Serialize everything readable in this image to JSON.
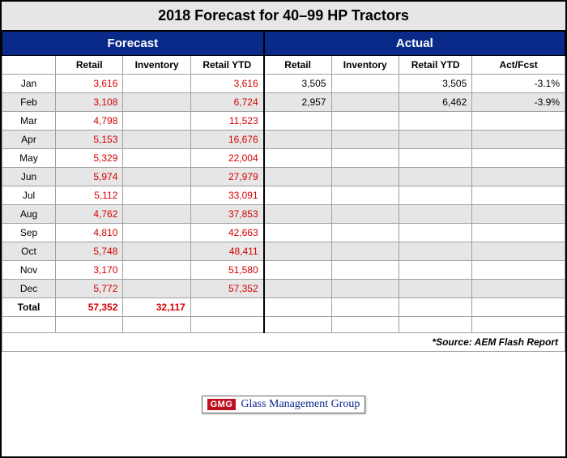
{
  "title": "2018 Forecast for 40–99 HP Tractors",
  "section_headers": {
    "forecast": "Forecast",
    "actual": "Actual"
  },
  "columns": {
    "month": "",
    "f_retail": "Retail",
    "f_inventory": "Inventory",
    "f_ytd": "Retail YTD",
    "a_retail": "Retail",
    "a_inventory": "Inventory",
    "a_ytd": "Retail YTD",
    "act_fcst": "Act/Fcst"
  },
  "rows": [
    {
      "month": "Jan",
      "f_retail": "3,616",
      "f_inventory": "",
      "f_ytd": "3,616",
      "a_retail": "3,505",
      "a_inventory": "",
      "a_ytd": "3,505",
      "act_fcst": "-3.1%"
    },
    {
      "month": "Feb",
      "f_retail": "3,108",
      "f_inventory": "",
      "f_ytd": "6,724",
      "a_retail": "2,957",
      "a_inventory": "",
      "a_ytd": "6,462",
      "act_fcst": "-3.9%"
    },
    {
      "month": "Mar",
      "f_retail": "4,798",
      "f_inventory": "",
      "f_ytd": "11,523",
      "a_retail": "",
      "a_inventory": "",
      "a_ytd": "",
      "act_fcst": ""
    },
    {
      "month": "Apr",
      "f_retail": "5,153",
      "f_inventory": "",
      "f_ytd": "16,676",
      "a_retail": "",
      "a_inventory": "",
      "a_ytd": "",
      "act_fcst": ""
    },
    {
      "month": "May",
      "f_retail": "5,329",
      "f_inventory": "",
      "f_ytd": "22,004",
      "a_retail": "",
      "a_inventory": "",
      "a_ytd": "",
      "act_fcst": ""
    },
    {
      "month": "Jun",
      "f_retail": "5,974",
      "f_inventory": "",
      "f_ytd": "27,979",
      "a_retail": "",
      "a_inventory": "",
      "a_ytd": "",
      "act_fcst": ""
    },
    {
      "month": "Jul",
      "f_retail": "5,112",
      "f_inventory": "",
      "f_ytd": "33,091",
      "a_retail": "",
      "a_inventory": "",
      "a_ytd": "",
      "act_fcst": ""
    },
    {
      "month": "Aug",
      "f_retail": "4,762",
      "f_inventory": "",
      "f_ytd": "37,853",
      "a_retail": "",
      "a_inventory": "",
      "a_ytd": "",
      "act_fcst": ""
    },
    {
      "month": "Sep",
      "f_retail": "4,810",
      "f_inventory": "",
      "f_ytd": "42,663",
      "a_retail": "",
      "a_inventory": "",
      "a_ytd": "",
      "act_fcst": ""
    },
    {
      "month": "Oct",
      "f_retail": "5,748",
      "f_inventory": "",
      "f_ytd": "48,411",
      "a_retail": "",
      "a_inventory": "",
      "a_ytd": "",
      "act_fcst": ""
    },
    {
      "month": "Nov",
      "f_retail": "3,170",
      "f_inventory": "",
      "f_ytd": "51,580",
      "a_retail": "",
      "a_inventory": "",
      "a_ytd": "",
      "act_fcst": ""
    },
    {
      "month": "Dec",
      "f_retail": "5,772",
      "f_inventory": "",
      "f_ytd": "57,352",
      "a_retail": "",
      "a_inventory": "",
      "a_ytd": "",
      "act_fcst": ""
    }
  ],
  "total": {
    "label": "Total",
    "f_retail": "57,352",
    "f_inventory": "32,117",
    "f_ytd": "",
    "a_retail": "",
    "a_inventory": "",
    "a_ytd": "",
    "act_fcst": ""
  },
  "source": "*Source: AEM Flash Report",
  "logo": {
    "badge": "GMG",
    "text": "Glass Management Group"
  },
  "style": {
    "table_type": "table",
    "header_bg": "#0a2a8a",
    "header_fg": "#ffffff",
    "alt_row_bg": "#e6e6e6",
    "row_bg": "#ffffff",
    "forecast_color": "#d40000",
    "actual_color": "#000000",
    "border_color": "#a0a0a0",
    "outer_border_color": "#000000",
    "title_fontsize_pt": 14,
    "body_fontsize_pt": 9,
    "col_widths_pct": [
      9.5,
      12,
      12,
      13,
      12,
      12,
      13,
      16.5
    ]
  }
}
